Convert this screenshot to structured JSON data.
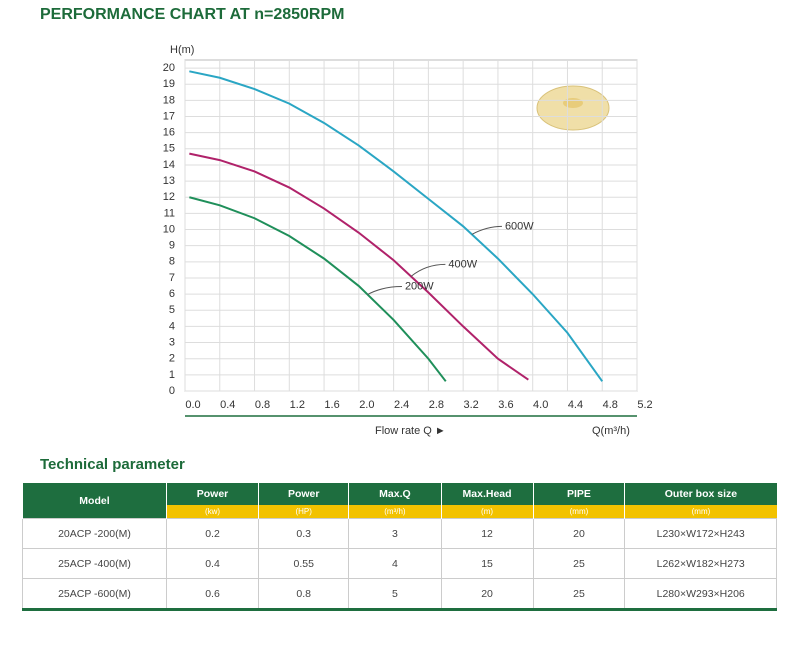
{
  "chart_data": {
    "type": "line",
    "title": "PERFORMANCE CHART AT n=2850RPM",
    "y_label": "H(m)",
    "x_label": "Flow rate Q  ►",
    "x_unit_label": "Q(m³/h)",
    "xlim": [
      0,
      5.2
    ],
    "ylim": [
      0,
      20.5
    ],
    "xticks": [
      {
        "value": 0,
        "label": "0.0"
      },
      0.4,
      0.8,
      1.2,
      1.6,
      {
        "value": 2,
        "label": "2.0"
      },
      2.4,
      2.8,
      3.2,
      3.6,
      {
        "value": 4,
        "label": "4.0"
      },
      4.4,
      4.8,
      5.2
    ],
    "yticks": [
      0,
      1,
      2,
      3,
      4,
      5,
      6,
      7,
      8,
      9,
      10,
      11,
      12,
      13,
      14,
      15,
      16,
      17,
      18,
      19,
      20
    ],
    "grid": true,
    "series": [
      {
        "name": "600W",
        "color": "#2aa6c4",
        "x": [
          0.05,
          0.4,
          0.8,
          1.2,
          1.6,
          2.0,
          2.4,
          2.8,
          3.2,
          3.6,
          4.0,
          4.4,
          4.8
        ],
        "values": [
          19.8,
          19.4,
          18.7,
          17.8,
          16.6,
          15.2,
          13.6,
          11.9,
          10.2,
          8.2,
          6.0,
          3.6,
          0.6
        ]
      },
      {
        "name": "400W",
        "color": "#b0226a",
        "x": [
          0.05,
          0.4,
          0.8,
          1.2,
          1.6,
          2.0,
          2.4,
          2.8,
          3.2,
          3.6,
          3.95
        ],
        "values": [
          14.7,
          14.3,
          13.6,
          12.6,
          11.3,
          9.8,
          8.1,
          6.1,
          4.0,
          2.0,
          0.7
        ]
      },
      {
        "name": "200W",
        "color": "#1f8f5a",
        "x": [
          0.05,
          0.4,
          0.8,
          1.2,
          1.6,
          2.0,
          2.4,
          2.8,
          3.0
        ],
        "values": [
          12.0,
          11.5,
          10.7,
          9.6,
          8.2,
          6.5,
          4.4,
          2.0,
          0.6
        ]
      }
    ]
  },
  "table": {
    "title": "Technical parameter",
    "header": [
      "Model",
      "Power",
      "Power",
      "Max.Q",
      "Max.Head",
      "PIPE",
      "Outer box size"
    ],
    "units": [
      "(kw)",
      "(HP)",
      "(m³/h)",
      "(m)",
      "(mm)",
      "(mm)"
    ],
    "rows": [
      [
        "20ACP -200(M)",
        "0.2",
        "0.3",
        "3",
        "12",
        "20",
        "L230×W172×H243"
      ],
      [
        "25ACP -400(M)",
        "0.4",
        "0.55",
        "4",
        "15",
        "25",
        "L262×W182×H273"
      ],
      [
        "25ACP -600(M)",
        "0.6",
        "0.8",
        "5",
        "20",
        "25",
        "L280×W293×H206"
      ]
    ]
  }
}
